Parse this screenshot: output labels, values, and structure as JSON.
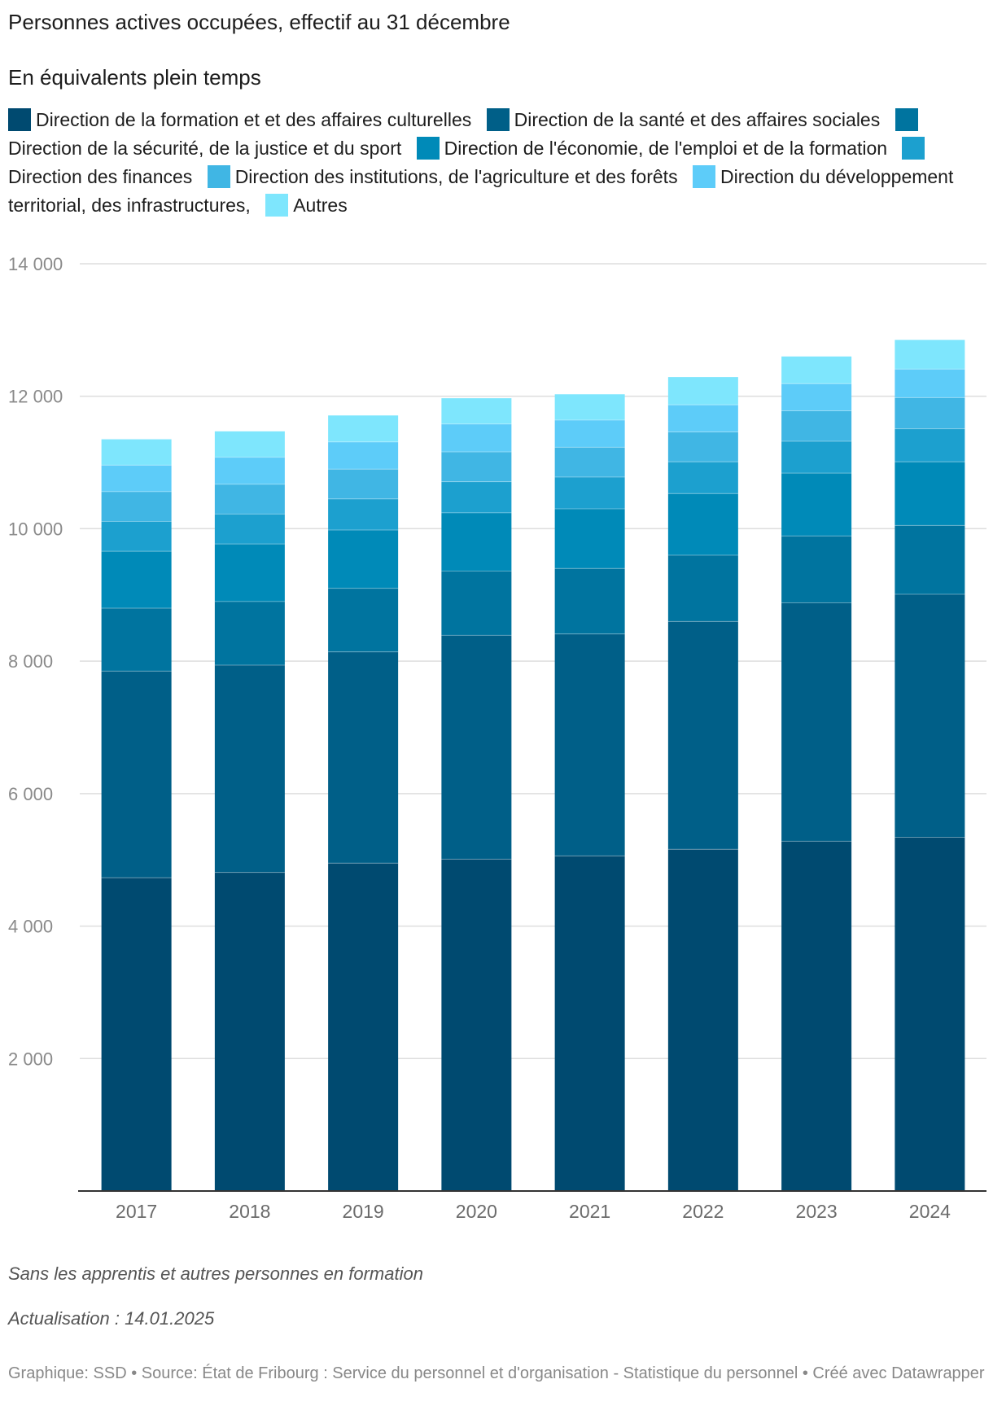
{
  "title": "Personnes actives occupées, effectif au 31 décembre",
  "subtitle": "En équivalents plein temps",
  "legend": [
    {
      "label": "Direction de la formation et et des affaires culturelles",
      "color": "#004a70"
    },
    {
      "label": "Direction de la santé et des affaires sociales",
      "color": "#005f88"
    },
    {
      "label": "Direction de la sécurité, de la justice et du sport",
      "color": "#00749f"
    },
    {
      "label": "Direction de l'économie, de l'emploi et de la formation",
      "color": "#008ab8"
    },
    {
      "label": "Direction des finances",
      "color": "#1ca0cf"
    },
    {
      "label": "Direction des institutions, de l'agriculture et des forêts",
      "color": "#40b6e4"
    },
    {
      "label": "Direction du développement territorial, des infrastructures,",
      "color": "#5dccf9"
    },
    {
      "label": "Autres",
      "color": "#7ee6fd"
    }
  ],
  "note1": "Sans les apprentis et autres personnes en formation",
  "note2": "Actualisation : 14.01.2025",
  "footer": "Graphique: SSD • Source: État de Fribourg : Service du personnel et d'organisation - Statistique du personnel • Créé avec Datawrapper",
  "chart_data": {
    "type": "bar",
    "stacked": true,
    "categories": [
      "2017",
      "2018",
      "2019",
      "2020",
      "2021",
      "2022",
      "2023",
      "2024"
    ],
    "ylim": [
      0,
      14000
    ],
    "yticks": [
      2000,
      4000,
      6000,
      8000,
      10000,
      12000,
      14000
    ],
    "ytick_labels": [
      "2 000",
      "4 000",
      "6 000",
      "8 000",
      "10 000",
      "12 000",
      "14 000"
    ],
    "grid": true,
    "series": [
      {
        "name": "Direction de la formation et et des affaires culturelles",
        "values": [
          4730,
          4810,
          4950,
          5010,
          5060,
          5160,
          5280,
          5340
        ]
      },
      {
        "name": "Direction de la santé et des affaires sociales",
        "values": [
          3120,
          3130,
          3190,
          3380,
          3350,
          3440,
          3600,
          3670
        ]
      },
      {
        "name": "Direction de la sécurité, de la justice et du sport",
        "values": [
          950,
          960,
          960,
          970,
          990,
          1000,
          1010,
          1040
        ]
      },
      {
        "name": "Direction de l'économie, de l'emploi et de la formation",
        "values": [
          860,
          870,
          880,
          880,
          900,
          930,
          950,
          960
        ]
      },
      {
        "name": "Direction des finances",
        "values": [
          450,
          450,
          470,
          470,
          480,
          480,
          480,
          500
        ]
      },
      {
        "name": "Direction des institutions, de l'agriculture et des forêts",
        "values": [
          450,
          450,
          450,
          450,
          450,
          450,
          460,
          470
        ]
      },
      {
        "name": "Direction du développement territorial, des infrastructures,",
        "values": [
          400,
          410,
          410,
          420,
          410,
          410,
          410,
          430
        ]
      },
      {
        "name": "Autres",
        "values": [
          390,
          390,
          400,
          390,
          390,
          420,
          410,
          440
        ]
      }
    ]
  }
}
